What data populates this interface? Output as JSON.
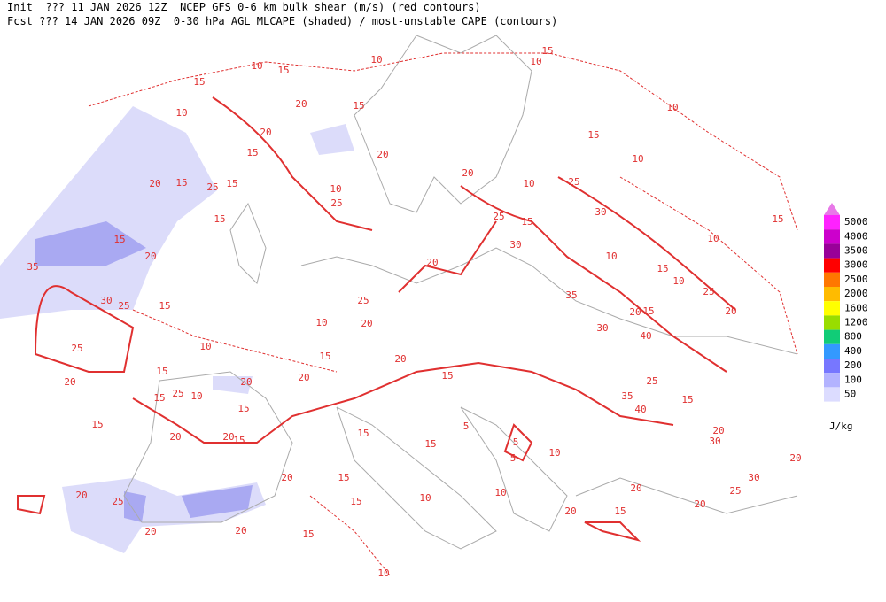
{
  "header": {
    "line1": "Init  ??? 11 JAN 2026 12Z  NCEP GFS 0-6 km bulk shear (m/s) (red contours)",
    "line2": "Fcst ??? 14 JAN 2026 09Z  0-30 hPa AGL MLCAPE (shaded) / most-unstable CAPE (contours)"
  },
  "legend": {
    "unit": "J/kg",
    "top_color": "#e879e8",
    "levels": [
      {
        "label": "5000",
        "color": "#ff22ff"
      },
      {
        "label": "4000",
        "color": "#cc00cc"
      },
      {
        "label": "3500",
        "color": "#990099"
      },
      {
        "label": "3000",
        "color": "#ff0000"
      },
      {
        "label": "2500",
        "color": "#ff7700"
      },
      {
        "label": "2000",
        "color": "#ffbb00"
      },
      {
        "label": "1600",
        "color": "#ffff00"
      },
      {
        "label": "1200",
        "color": "#99dd00"
      },
      {
        "label": "800",
        "color": "#11cc77"
      },
      {
        "label": "400",
        "color": "#3399ff"
      },
      {
        "label": "200",
        "color": "#7777ff"
      },
      {
        "label": "100",
        "color": "#b3b3ff"
      },
      {
        "label": "50",
        "color": "#dcdcff"
      }
    ]
  },
  "contour_labels": [
    "10",
    "15",
    "10",
    "15",
    "10",
    "10",
    "15",
    "10",
    "20",
    "15",
    "15",
    "10",
    "15",
    "20",
    "20",
    "20",
    "25",
    "10",
    "15",
    "20",
    "25",
    "15",
    "10",
    "25",
    "30",
    "15",
    "15",
    "30",
    "25",
    "15",
    "20",
    "10",
    "10",
    "15",
    "20",
    "35",
    "15",
    "25",
    "10",
    "15",
    "30",
    "25",
    "25",
    "35",
    "15",
    "20",
    "20",
    "10",
    "20",
    "30",
    "25",
    "10",
    "15",
    "20",
    "20",
    "15",
    "25",
    "40",
    "20",
    "10",
    "20",
    "15",
    "35",
    "25",
    "15",
    "40",
    "15",
    "15",
    "15",
    "15",
    "5",
    "20",
    "30",
    "20",
    "20",
    "5",
    "15",
    "5",
    "10",
    "20",
    "30",
    "15",
    "10",
    "20",
    "20",
    "15",
    "25",
    "10",
    "20",
    "15",
    "20",
    "25",
    "20",
    "15",
    "20",
    "15",
    "10",
    "20"
  ]
}
